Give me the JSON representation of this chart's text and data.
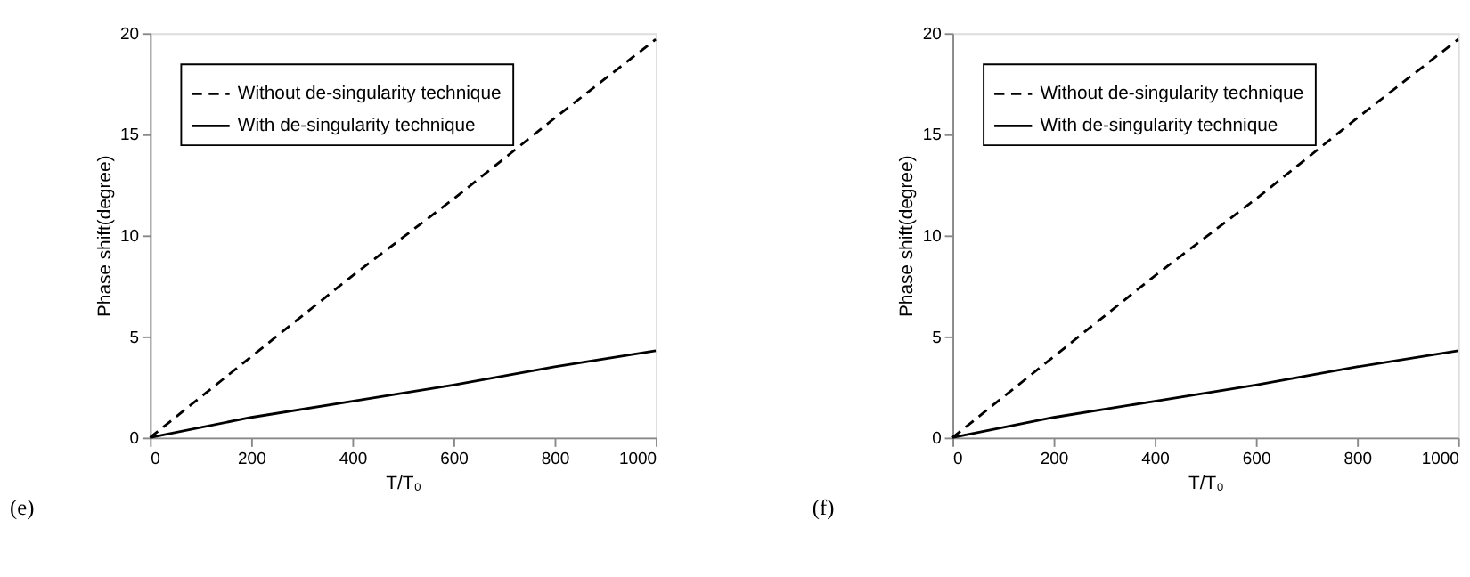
{
  "chart_data": [
    {
      "type": "line",
      "xlabel": "T/T₀",
      "ylabel": "Phase shift(degree)",
      "annotations": [
        "(e)"
      ],
      "xlim": [
        0,
        1000
      ],
      "ylim": [
        0,
        20
      ],
      "xticks": [
        0,
        200,
        400,
        600,
        800,
        1000
      ],
      "yticks": [
        0,
        5,
        10,
        15,
        20
      ],
      "grid": false,
      "legend": "top left",
      "series": [
        {
          "name": "Without de-singularity technique",
          "color": "#000000",
          "line_style": "dashed",
          "x": [
            0,
            200,
            400,
            600,
            800,
            1000
          ],
          "values": [
            0,
            4,
            8,
            11.8,
            15.8,
            19.7
          ]
        },
        {
          "name": "With de-singularity technique",
          "color": "#000000",
          "line_style": "solid",
          "x": [
            0,
            200,
            400,
            600,
            800,
            1000
          ],
          "values": [
            0,
            1.0,
            1.8,
            2.6,
            3.5,
            4.3
          ]
        }
      ]
    },
    {
      "type": "line",
      "xlabel": "T/T₀",
      "ylabel": "Phase shift(degree)",
      "annotations": [
        "(f)"
      ],
      "xlim": [
        0,
        1000
      ],
      "ylim": [
        0,
        20
      ],
      "xticks": [
        0,
        200,
        400,
        600,
        800,
        1000
      ],
      "yticks": [
        0,
        5,
        10,
        15,
        20
      ],
      "grid": false,
      "legend": "top left",
      "series": [
        {
          "name": "Without de-singularity technique",
          "color": "#000000",
          "line_style": "dashed",
          "x": [
            0,
            200,
            400,
            600,
            800,
            1000
          ],
          "values": [
            0,
            4,
            8,
            11.8,
            15.8,
            19.7
          ]
        },
        {
          "name": "With de-singularity technique",
          "color": "#000000",
          "line_style": "solid",
          "x": [
            0,
            200,
            400,
            600,
            800,
            1000
          ],
          "values": [
            0,
            1.0,
            1.8,
            2.6,
            3.5,
            4.3
          ]
        }
      ]
    }
  ]
}
